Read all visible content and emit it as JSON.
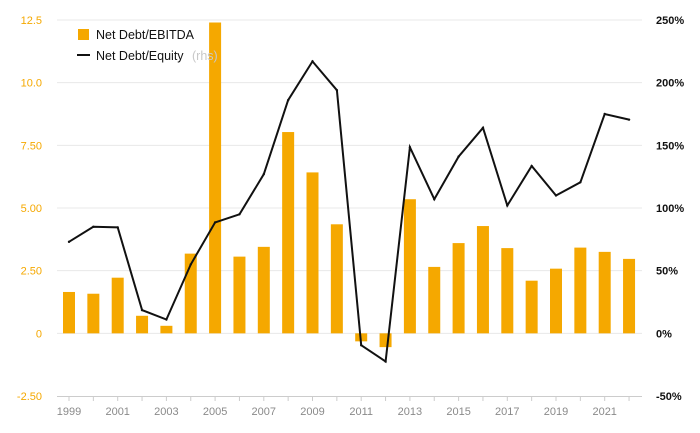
{
  "chart_data": {
    "type": "bar",
    "categories": [
      "1999",
      "2000",
      "2001",
      "2002",
      "2003",
      "2004",
      "2005",
      "2006",
      "2007",
      "2008",
      "2009",
      "2010",
      "2011",
      "2012",
      "2013",
      "2014",
      "2015",
      "2016",
      "2017",
      "2018",
      "2019",
      "2020",
      "2021",
      "2022"
    ],
    "x_tick_labels": [
      "1999",
      "2001",
      "2003",
      "2005",
      "2007",
      "2009",
      "2011",
      "2013",
      "2015",
      "2017",
      "2019",
      "2021"
    ],
    "series": [
      {
        "name": "Net Debt/EBITDA",
        "type": "bar",
        "axis": "left",
        "color": "#f5a800",
        "values": [
          1.65,
          1.58,
          2.22,
          0.7,
          0.3,
          3.18,
          12.4,
          3.06,
          3.45,
          8.03,
          6.42,
          4.35,
          -0.32,
          -0.55,
          5.35,
          2.65,
          3.6,
          4.28,
          3.4,
          2.1,
          2.58,
          3.42,
          3.25,
          2.97
        ]
      },
      {
        "name": "Net Debt/Equity",
        "name_suffix": "(rhs)",
        "type": "line",
        "axis": "right",
        "unit": "%",
        "color": "#111111",
        "values": [
          73,
          85,
          84.5,
          18.5,
          11,
          55,
          88.5,
          95,
          127,
          186,
          217,
          194,
          -9.5,
          -22.5,
          148.5,
          107,
          141,
          164,
          102,
          133.5,
          110,
          120.5,
          175,
          170.5
        ]
      }
    ],
    "y_left": {
      "range": [
        -2.5,
        12.5
      ],
      "ticks": [
        "-2.50",
        "0",
        "2.50",
        "5.00",
        "7.50",
        "10.0",
        "12.5"
      ],
      "tick_values": [
        -2.5,
        0,
        2.5,
        5,
        7.5,
        10,
        12.5
      ],
      "color": "#f5a800"
    },
    "y_right": {
      "range": [
        -50,
        250
      ],
      "ticks": [
        "-50%",
        "0%",
        "50%",
        "100%",
        "150%",
        "200%",
        "250%"
      ]
    },
    "grid": true,
    "legend_position": "top-left"
  }
}
